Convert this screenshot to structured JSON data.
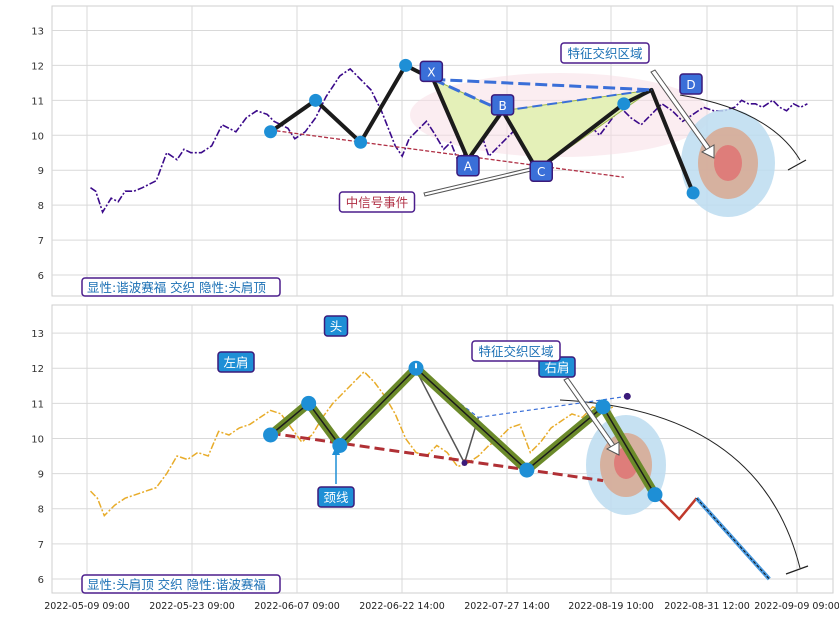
{
  "chart_data": [
    {
      "type": "line",
      "panel": "top",
      "ylim": [
        5.4,
        13.7
      ],
      "y_ticks": [
        6,
        7,
        8,
        9,
        10,
        11,
        12,
        13
      ],
      "grid": true,
      "legend_text": "显性:谐波赛福 交织 隐性:头肩顶",
      "labels": {
        "feature_zone": "特征交织区域",
        "signal_event": "中信号事件",
        "X": "X",
        "A": "A",
        "B": "B",
        "C": "C",
        "D": "D"
      },
      "price_series": {
        "x": [
          0.1,
          0.25,
          0.45,
          0.7,
          0.9,
          1.1,
          1.35,
          1.6,
          1.8,
          2.0,
          2.3,
          2.6,
          2.8,
          3.0,
          3.3,
          3.6,
          3.9,
          4.1,
          4.3,
          4.6,
          4.9,
          5.2,
          5.4,
          5.6,
          5.8,
          6.0,
          6.3,
          6.6,
          6.9,
          7.1,
          7.3,
          7.6,
          7.9,
          8.2,
          8.5,
          8.7,
          8.9,
          9.1,
          9.3,
          9.6,
          9.8,
          10.0,
          10.3,
          10.5,
          10.7,
          10.85,
          11.0,
          11.2,
          11.4,
          11.6,
          11.8,
          12.0,
          12.3,
          12.5,
          12.8,
          13.0,
          13.3,
          13.6,
          13.9,
          14.2,
          14.5,
          14.8,
          15.1,
          15.4,
          15.7,
          16.0,
          16.3,
          16.6,
          16.9,
          17.2,
          17.5,
          17.8,
          18.1,
          18.4,
          18.7,
          18.9,
          19.1,
          19.3,
          19.5,
          19.8,
          20.0,
          20.2,
          20.4,
          20.6,
          20.8
        ],
        "y": [
          8.5,
          8.4,
          7.8,
          8.2,
          8.1,
          8.4,
          8.4,
          8.5,
          8.6,
          8.7,
          9.5,
          9.3,
          9.6,
          9.5,
          9.5,
          9.7,
          10.3,
          10.2,
          10.1,
          10.5,
          10.7,
          10.6,
          10.4,
          10.3,
          10.2,
          9.9,
          10.1,
          10.5,
          11.1,
          11.4,
          11.7,
          11.9,
          11.6,
          11.3,
          10.7,
          10.2,
          9.7,
          9.4,
          9.9,
          10.2,
          10.4,
          10.1,
          9.6,
          9.8,
          9.3,
          9.4,
          9.6,
          9.9,
          10.0,
          9.4,
          9.6,
          9.8,
          10.1,
          10.2,
          10.0,
          9.6,
          9.5,
          9.7,
          10.0,
          10.2,
          10.3,
          10.0,
          10.4,
          10.8,
          10.5,
          10.3,
          10.6,
          10.9,
          10.7,
          10.4,
          10.6,
          10.8,
          10.7,
          10.7,
          10.8,
          11.0,
          10.9,
          10.9,
          10.8,
          11.0,
          10.8,
          10.7,
          10.9,
          10.8,
          10.9
        ]
      },
      "pattern_points": [
        {
          "x": 5.3,
          "y": 10.1
        },
        {
          "x": 6.6,
          "y": 11.0
        },
        {
          "x": 7.9,
          "y": 9.8
        },
        {
          "x": 9.2,
          "y": 12.0
        },
        {
          "x": 10.0,
          "y": 11.6
        },
        {
          "x": 11.0,
          "y": 9.3
        },
        {
          "x": 12.0,
          "y": 10.7
        },
        {
          "x": 13.0,
          "y": 9.0
        },
        {
          "x": 15.5,
          "y": 10.9
        },
        {
          "x": 16.3,
          "y": 11.3
        },
        {
          "x": 17.5,
          "y": 8.35
        }
      ],
      "neckline": {
        "x": [
          5.3,
          15.5
        ],
        "y": [
          10.15,
          8.8
        ]
      }
    },
    {
      "type": "line",
      "panel": "bottom",
      "ylim": [
        5.6,
        13.8
      ],
      "y_ticks": [
        6,
        7,
        8,
        9,
        10,
        11,
        12,
        13
      ],
      "grid": true,
      "legend_text": "显性:头肩顶 交织 隐性:谐波赛福",
      "labels": {
        "head": "头",
        "left_shoulder": "左肩",
        "right_shoulder": "右肩",
        "neckline": "颈线",
        "feature_zone": "特征交织区域"
      },
      "x_tick_labels": [
        "2022-05-09 09:00",
        "2022-05-23 09:00",
        "2022-06-07 09:00",
        "2022-06-22 14:00",
        "2022-07-27 14:00",
        "2022-08-19 10:00",
        "2022-08-31 12:00",
        "2022-09-09 09:00"
      ],
      "price_series": {
        "x": [
          0.1,
          0.3,
          0.5,
          0.8,
          1.1,
          1.4,
          1.7,
          2.0,
          2.3,
          2.6,
          2.9,
          3.2,
          3.5,
          3.8,
          4.1,
          4.4,
          4.7,
          5.0,
          5.3,
          5.6,
          5.9,
          6.2,
          6.5,
          6.8,
          7.1,
          7.4,
          7.7,
          8.0,
          8.3,
          8.6,
          8.9,
          9.2,
          9.5,
          9.8,
          10.1,
          10.4,
          10.7,
          11.0,
          11.3,
          11.6,
          11.9,
          12.2,
          12.5,
          12.8,
          13.1,
          13.4,
          13.7,
          14.0,
          14.3,
          14.6,
          14.9,
          15.2
        ],
        "y": [
          8.5,
          8.3,
          7.8,
          8.1,
          8.3,
          8.4,
          8.5,
          8.6,
          9.0,
          9.5,
          9.4,
          9.6,
          9.5,
          10.2,
          10.1,
          10.3,
          10.4,
          10.6,
          10.8,
          10.7,
          10.3,
          9.9,
          10.1,
          10.6,
          11.0,
          11.3,
          11.6,
          11.9,
          11.6,
          11.2,
          10.7,
          10.0,
          9.6,
          9.5,
          9.8,
          9.6,
          9.2,
          9.3,
          9.5,
          9.8,
          10.0,
          10.3,
          10.4,
          9.6,
          9.9,
          10.3,
          10.5,
          10.7,
          10.6,
          10.9,
          10.8,
          10.9
        ]
      },
      "shoulder_path": {
        "x": [
          5.3,
          6.4,
          7.3,
          9.5,
          12.7,
          14.9,
          16.4,
          17.1,
          17.6,
          19.7
        ],
        "y": [
          10.1,
          11.0,
          9.8,
          12.0,
          9.1,
          10.9,
          8.4,
          7.7,
          8.3,
          6.0
        ]
      },
      "projection_split_x": 16.4,
      "neckline": {
        "x": [
          5.3,
          14.9
        ],
        "y": [
          10.15,
          8.8
        ]
      },
      "harmonic_hidden": {
        "x": [
          9.5,
          10.2,
          10.9,
          11.3,
          15.6
        ],
        "y": [
          11.95,
          11.75,
          9.3,
          10.6,
          11.2
        ]
      },
      "x_range": [
        0,
        20.5
      ]
    }
  ]
}
